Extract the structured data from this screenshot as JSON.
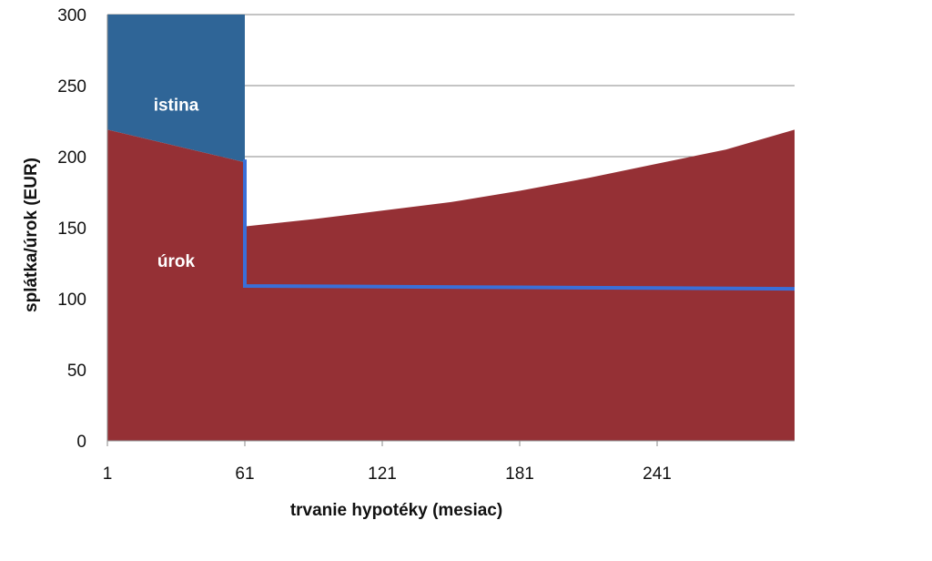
{
  "chart_data": {
    "type": "area",
    "title": "",
    "xlabel": "trvanie hypotéky (mesiac)",
    "ylabel": "splátka/úrok (EUR)",
    "xlim": [
      1,
      301
    ],
    "ylim": [
      0,
      300
    ],
    "x_ticks": [
      "1",
      "61",
      "121",
      "181",
      "241"
    ],
    "y_ticks": [
      "0",
      "50",
      "100",
      "150",
      "200",
      "250",
      "300"
    ],
    "grid": "horizontal",
    "legend": "none",
    "series": [
      {
        "name": "istina",
        "color": "#2f6597",
        "points": [
          [
            1,
            300
          ],
          [
            61,
            300
          ]
        ]
      },
      {
        "name": "úrok",
        "color": "#953035",
        "points": [
          [
            1,
            219
          ],
          [
            61,
            196
          ],
          [
            61.5,
            151
          ],
          [
            91,
            156
          ],
          [
            121,
            162
          ],
          [
            151,
            168
          ],
          [
            181,
            176
          ],
          [
            211,
            185
          ],
          [
            241,
            195
          ],
          [
            271,
            205
          ],
          [
            301,
            219
          ]
        ]
      },
      {
        "name": "",
        "color": "#3a6fd8",
        "points": [
          [
            61,
            198
          ],
          [
            61,
            109
          ],
          [
            121,
            108.5
          ],
          [
            181,
            108
          ],
          [
            241,
            107.5
          ],
          [
            301,
            107
          ]
        ]
      }
    ]
  }
}
